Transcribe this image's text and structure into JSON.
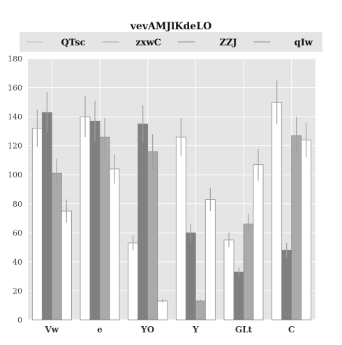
{
  "chart_data": {
    "type": "bar",
    "title": "vevAMJlKdeLO",
    "xlabel": "",
    "ylabel": "",
    "categories": [
      "Vw",
      "e",
      "YO",
      "Y",
      "GLt",
      "C"
    ],
    "ylim": [
      0,
      180
    ],
    "yticks": [
      0,
      20,
      40,
      60,
      80,
      100,
      120,
      140,
      160,
      180
    ],
    "grid": true,
    "legend_position": "top",
    "series": [
      {
        "name": "QTsc",
        "color": "#ffffff",
        "values": [
          132,
          140,
          53,
          126,
          55,
          150
        ],
        "errors": [
          13,
          14,
          5,
          13,
          5,
          15
        ]
      },
      {
        "name": "zxwC",
        "color": "#808080",
        "values": [
          143,
          137,
          135,
          60,
          33,
          48
        ],
        "errors": [
          14,
          14,
          13,
          6,
          3,
          5
        ]
      },
      {
        "name": "ZZJ",
        "color": "#aaaaaa",
        "values": [
          101,
          126,
          116,
          13,
          66,
          127
        ],
        "errors": [
          10,
          13,
          12,
          1,
          7,
          13
        ]
      },
      {
        "name": "qIw",
        "color": "#ffffff",
        "values": [
          75,
          104,
          13,
          83,
          107,
          124
        ],
        "errors": [
          8,
          10,
          1,
          8,
          11,
          12
        ]
      }
    ]
  }
}
